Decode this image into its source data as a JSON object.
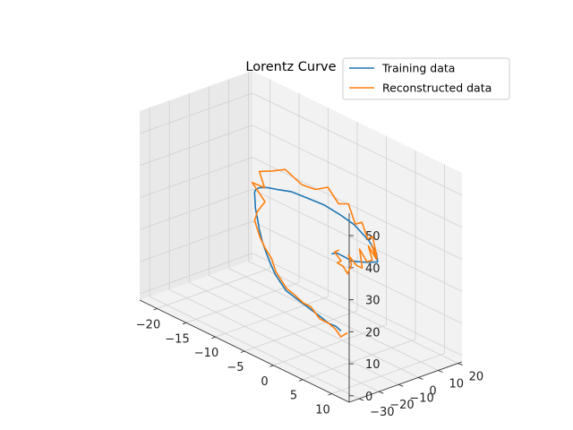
{
  "chart_data": {
    "type": "line",
    "projection": "3d",
    "title": "Lorentz Curve",
    "legend": {
      "placement": "top-right"
    },
    "grid": true,
    "xlim": [
      -23,
      13
    ],
    "ylim": [
      -35,
      22
    ],
    "zlim": [
      -2,
      57
    ],
    "xticks": [
      -20,
      -15,
      -10,
      -5,
      0,
      5,
      10
    ],
    "yticks": [
      -30,
      -20,
      -10,
      0,
      10,
      20
    ],
    "zticks": [
      0,
      10,
      20,
      30,
      40,
      50
    ],
    "xtick_labels": [
      "−20",
      "−15",
      "−10",
      "−5",
      "0",
      "5",
      "10"
    ],
    "ytick_labels": [
      "−30",
      "−20",
      "−10",
      "0",
      "10",
      "20"
    ],
    "ztick_labels": [
      "0",
      "10",
      "20",
      "30",
      "40",
      "50"
    ],
    "series": [
      {
        "name": "Training data",
        "color": "#1f77b4",
        "points": [
          [
            -1.5,
            -1.0,
            24
          ],
          [
            0.0,
            -3.0,
            26
          ],
          [
            2.0,
            -5.0,
            27
          ],
          [
            4.0,
            -7.2,
            28
          ],
          [
            6.0,
            -9.4,
            30
          ],
          [
            8.0,
            -11.2,
            32
          ],
          [
            10.0,
            -11.8,
            34
          ],
          [
            9.4,
            -10.6,
            36
          ],
          [
            7.6,
            -9.2,
            38
          ],
          [
            4.6,
            -7.8,
            40
          ],
          [
            1.6,
            -6.0,
            40
          ],
          [
            -1.6,
            -4.8,
            40
          ],
          [
            -4.8,
            -3.6,
            39
          ],
          [
            -8.0,
            -2.6,
            38
          ],
          [
            -10.8,
            -1.6,
            36
          ],
          [
            -13.2,
            0.4,
            34
          ],
          [
            -15.0,
            2.0,
            32
          ],
          [
            -16.2,
            3.6,
            30
          ],
          [
            -17.0,
            5.4,
            28
          ],
          [
            -17.4,
            6.8,
            25
          ],
          [
            -17.6,
            7.6,
            22
          ],
          [
            -17.4,
            8.0,
            19
          ],
          [
            -17.0,
            7.8,
            16
          ],
          [
            -16.2,
            7.0,
            13
          ],
          [
            -15.2,
            5.8,
            11
          ],
          [
            -14.0,
            4.4,
            9
          ],
          [
            -12.6,
            2.8,
            7
          ],
          [
            -11.2,
            1.4,
            6
          ],
          [
            -9.8,
            0.0,
            5
          ],
          [
            -8.0,
            -1.4,
            5
          ],
          [
            -6.0,
            -2.8,
            5
          ],
          [
            -4.0,
            -4.2,
            5
          ],
          [
            -2.0,
            -5.6,
            5
          ],
          [
            0.0,
            -7.2,
            5
          ],
          [
            1.8,
            -8.8,
            6
          ],
          [
            3.0,
            -10.0,
            6
          ]
        ]
      },
      {
        "name": "Reconstructed data",
        "color": "#ff7f0e",
        "points": [
          [
            0.2,
            -2.8,
            27
          ],
          [
            -1.0,
            -1.2,
            25
          ],
          [
            0.6,
            -2.6,
            24
          ],
          [
            -0.6,
            -1.0,
            22
          ],
          [
            1.2,
            -3.4,
            23
          ],
          [
            2.4,
            -4.6,
            22
          ],
          [
            3.4,
            -5.6,
            26
          ],
          [
            2.6,
            -4.8,
            28
          ],
          [
            4.6,
            -6.6,
            27
          ],
          [
            6.2,
            -8.4,
            28
          ],
          [
            5.4,
            -7.4,
            33
          ],
          [
            7.2,
            -9.0,
            31
          ],
          [
            8.6,
            -10.4,
            33
          ],
          [
            7.4,
            -8.8,
            36
          ],
          [
            9.4,
            -10.6,
            34
          ],
          [
            8.2,
            -9.4,
            37
          ],
          [
            9.6,
            -11.0,
            35
          ],
          [
            8.4,
            -9.6,
            40
          ],
          [
            7.2,
            -8.6,
            38
          ],
          [
            6.0,
            -8.0,
            42
          ],
          [
            4.6,
            -7.2,
            40
          ],
          [
            3.2,
            -6.6,
            45
          ],
          [
            1.2,
            -5.6,
            43
          ],
          [
            -1.0,
            -4.6,
            46
          ],
          [
            -3.4,
            -3.8,
            43
          ],
          [
            -6.0,
            -3.0,
            42
          ],
          [
            -9.0,
            -2.6,
            44
          ],
          [
            -11.6,
            -1.4,
            41
          ],
          [
            -14.4,
            0.2,
            38
          ],
          [
            -14.0,
            1.6,
            33
          ],
          [
            -16.6,
            3.0,
            32
          ],
          [
            -15.0,
            4.8,
            27
          ],
          [
            -16.8,
            6.2,
            22
          ],
          [
            -17.8,
            7.8,
            18
          ],
          [
            -17.2,
            8.8,
            13
          ],
          [
            -16.0,
            7.8,
            11
          ],
          [
            -14.0,
            5.2,
            10
          ],
          [
            -12.4,
            2.6,
            8
          ],
          [
            -10.8,
            0.8,
            7
          ],
          [
            -9.4,
            -0.6,
            6
          ],
          [
            -7.6,
            -2.0,
            6
          ],
          [
            -6.0,
            -2.4,
            5
          ],
          [
            -4.0,
            -4.4,
            6
          ],
          [
            -2.2,
            -5.2,
            4
          ],
          [
            0.0,
            -7.2,
            5
          ],
          [
            1.6,
            -8.6,
            5
          ],
          [
            3.0,
            -9.8,
            4
          ],
          [
            4.0,
            -9.6,
            6
          ]
        ]
      }
    ]
  }
}
